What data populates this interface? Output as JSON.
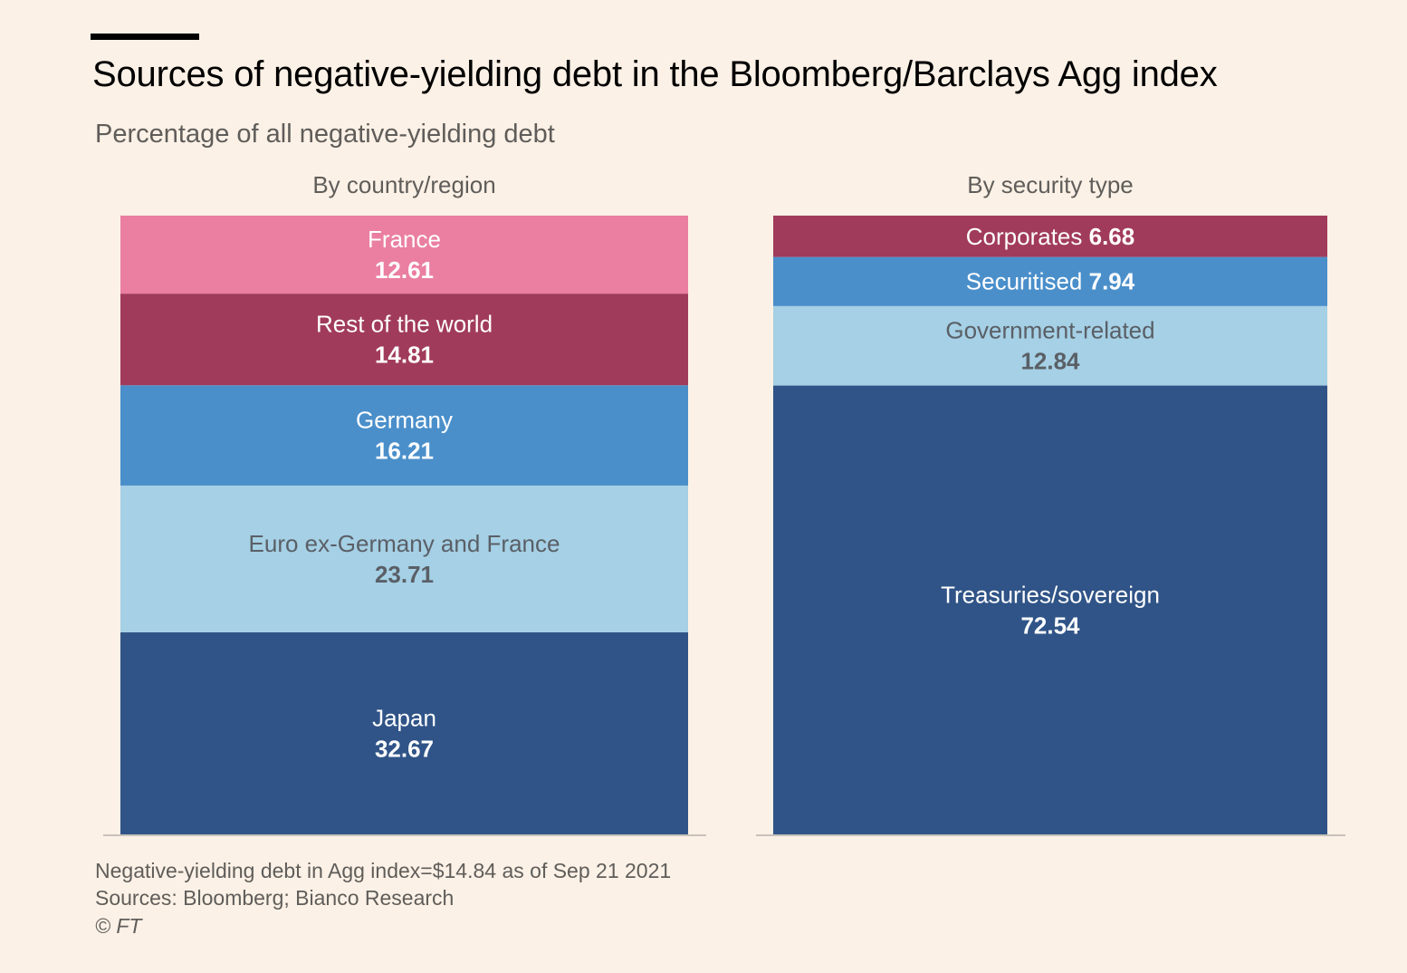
{
  "title": "Sources of negative-yielding debt in the Bloomberg/Barclays Agg index",
  "subtitle": "Percentage of all negative-yielding debt",
  "footer": {
    "note": "Negative-yielding debt in Agg index=$14.84 as of Sep 21 2021",
    "sources": "Sources: Bloomberg; Bianco Research",
    "copyright": "© FT"
  },
  "chart_data": [
    {
      "type": "bar",
      "stacked": true,
      "title": "By country/region",
      "segments": [
        {
          "name": "Japan",
          "value": 32.67,
          "color": "#305487",
          "text_color": "#ffffff"
        },
        {
          "name": "Euro ex-Germany and France",
          "value": 23.71,
          "color": "#a5d0e5",
          "text_color": "#5a5f66"
        },
        {
          "name": "Germany",
          "value": 16.21,
          "color": "#4a8fca",
          "text_color": "#ffffff"
        },
        {
          "name": "Rest of the world",
          "value": 14.81,
          "color": "#a13b5c",
          "text_color": "#ffffff"
        },
        {
          "name": "France",
          "value": 12.61,
          "color": "#ea7fa2",
          "text_color": "#ffffff"
        }
      ]
    },
    {
      "type": "bar",
      "stacked": true,
      "title": "By security type",
      "segments": [
        {
          "name": "Treasuries/sovereign",
          "value": 72.54,
          "color": "#305487",
          "text_color": "#ffffff"
        },
        {
          "name": "Government-related",
          "value": 12.84,
          "color": "#a5d0e5",
          "text_color": "#5a5f66"
        },
        {
          "name": "Securitised",
          "value": 7.94,
          "color": "#4a8fca",
          "text_color": "#ffffff"
        },
        {
          "name": "Corporates",
          "value": 6.68,
          "color": "#a13b5c",
          "text_color": "#ffffff"
        }
      ]
    }
  ]
}
